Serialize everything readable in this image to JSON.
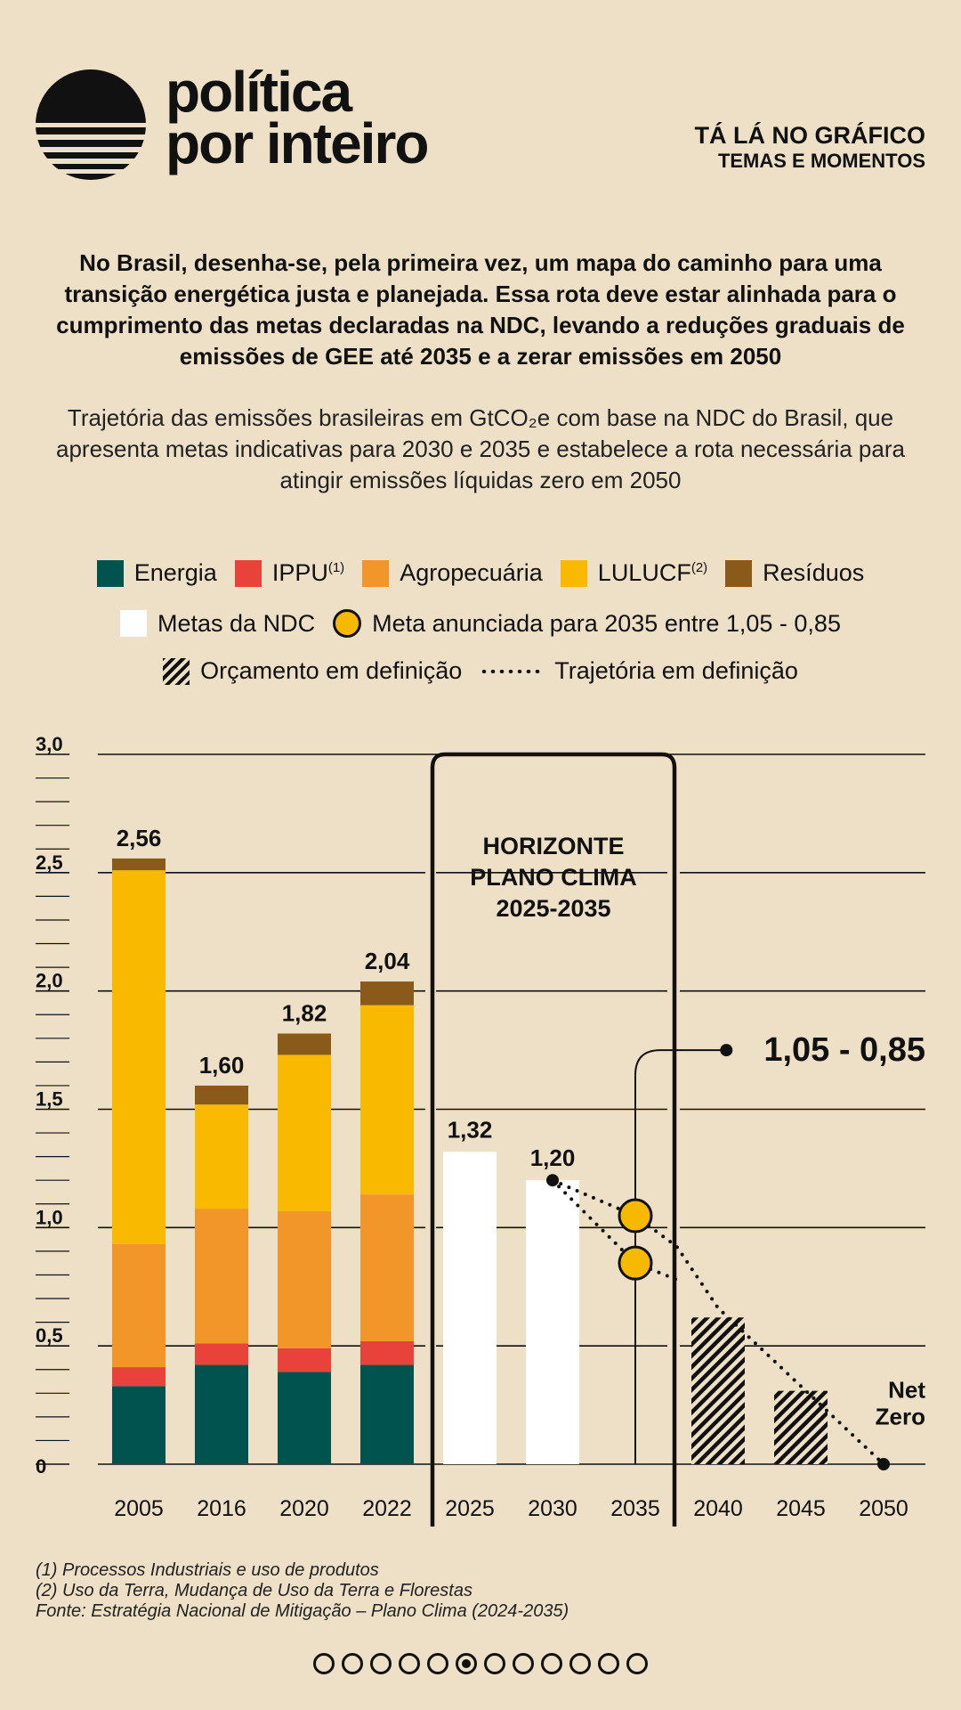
{
  "brand": {
    "line1": "política",
    "line2": "por inteiro"
  },
  "kicker": {
    "line1": "TÁ LÁ NO GRÁFICO",
    "line2": "TEMAS E MOMENTOS"
  },
  "lead": "No Brasil, desenha-se, pela primeira vez, um mapa do caminho para uma transição energética justa e planejada. Essa rota deve estar alinhada para o cumprimento das metas declaradas na NDC, levando a reduções graduais de emissões de GEE até 2035 e a zerar emissões em 2050",
  "subtitle": "Trajetória das emissões brasileiras em GtCO₂e com base na NDC do Brasil, que apresenta metas indicativas para 2030 e 2035 e estabelece a rota necessária para atingir emissões líquidas zero em 2050",
  "legend": {
    "energia": "Energia",
    "ippu": "IPPU",
    "ippu_sup": "(1)",
    "agro": "Agropecuária",
    "lulucf": "LULUCF",
    "lulucf_sup": "(2)",
    "residuos": "Resíduos",
    "metas": "Metas da NDC",
    "meta2035": "Meta anunciada para 2035 entre 1,05 - 0,85",
    "orcamento": "Orçamento em definição",
    "trajetoria": "Trajetória em definição"
  },
  "colors": {
    "energia": "#00534f",
    "ippu": "#e8423a",
    "agro": "#f2962a",
    "lulucf": "#f9b900",
    "residuos": "#8a5a1a",
    "meta": "#ffffff",
    "goal": "#f7b800",
    "background": "#ede0c6"
  },
  "chart_data": {
    "type": "bar",
    "stacked": true,
    "unit": "GtCO2e",
    "ylim": [
      0,
      3.0
    ],
    "yticks": [
      {
        "value": 0,
        "label": "0"
      },
      {
        "value": 0.5,
        "label": "0,5"
      },
      {
        "value": 1.0,
        "label": "1,0"
      },
      {
        "value": 1.5,
        "label": "1,5"
      },
      {
        "value": 2.0,
        "label": "2,0"
      },
      {
        "value": 2.5,
        "label": "2,5"
      },
      {
        "value": 3.0,
        "label": "3,0"
      }
    ],
    "categories": [
      "2005",
      "2016",
      "2020",
      "2022",
      "2025",
      "2030",
      "2035",
      "2040",
      "2045",
      "2050"
    ],
    "historical": [
      {
        "year": "2005",
        "total_label": "2,56",
        "energia": 0.33,
        "ippu": 0.08,
        "agro": 0.52,
        "lulucf": 1.58,
        "residuos": 0.05
      },
      {
        "year": "2016",
        "total_label": "1,60",
        "energia": 0.42,
        "ippu": 0.09,
        "agro": 0.57,
        "lulucf": 0.44,
        "residuos": 0.08
      },
      {
        "year": "2020",
        "total_label": "1,82",
        "energia": 0.39,
        "ippu": 0.1,
        "agro": 0.58,
        "lulucf": 0.66,
        "residuos": 0.09
      },
      {
        "year": "2022",
        "total_label": "2,04",
        "energia": 0.42,
        "ippu": 0.1,
        "agro": 0.62,
        "lulucf": 0.8,
        "residuos": 0.1
      }
    ],
    "ndc_targets": [
      {
        "year": "2025",
        "value": 1.32,
        "label": "1,32"
      },
      {
        "year": "2030",
        "value": 1.2,
        "label": "1,20"
      }
    ],
    "goal_2035": {
      "year": "2035",
      "high": 1.05,
      "low": 0.85,
      "label": "1,05 - 0,85"
    },
    "budget_in_definition": [
      {
        "year": "2040",
        "value": 0.62
      },
      {
        "year": "2045",
        "value": 0.31
      }
    ],
    "trajectory_end": {
      "year": "2050",
      "value": 0,
      "label_line1": "Net",
      "label_line2": "Zero"
    },
    "horizon_box": {
      "line1": "HORIZONTE",
      "line2": "PLANO CLIMA",
      "line3": "2025-2035"
    }
  },
  "notes": {
    "n1": "(1) Processos Industriais e uso de produtos",
    "n2": "(2) Uso da Terra, Mudança de Uso da Terra e Florestas",
    "source": "Fonte: Estratégia Nacional de Mitigação – Plano Clima (2024-2035)"
  },
  "pager": {
    "total": 12,
    "active": 6
  }
}
